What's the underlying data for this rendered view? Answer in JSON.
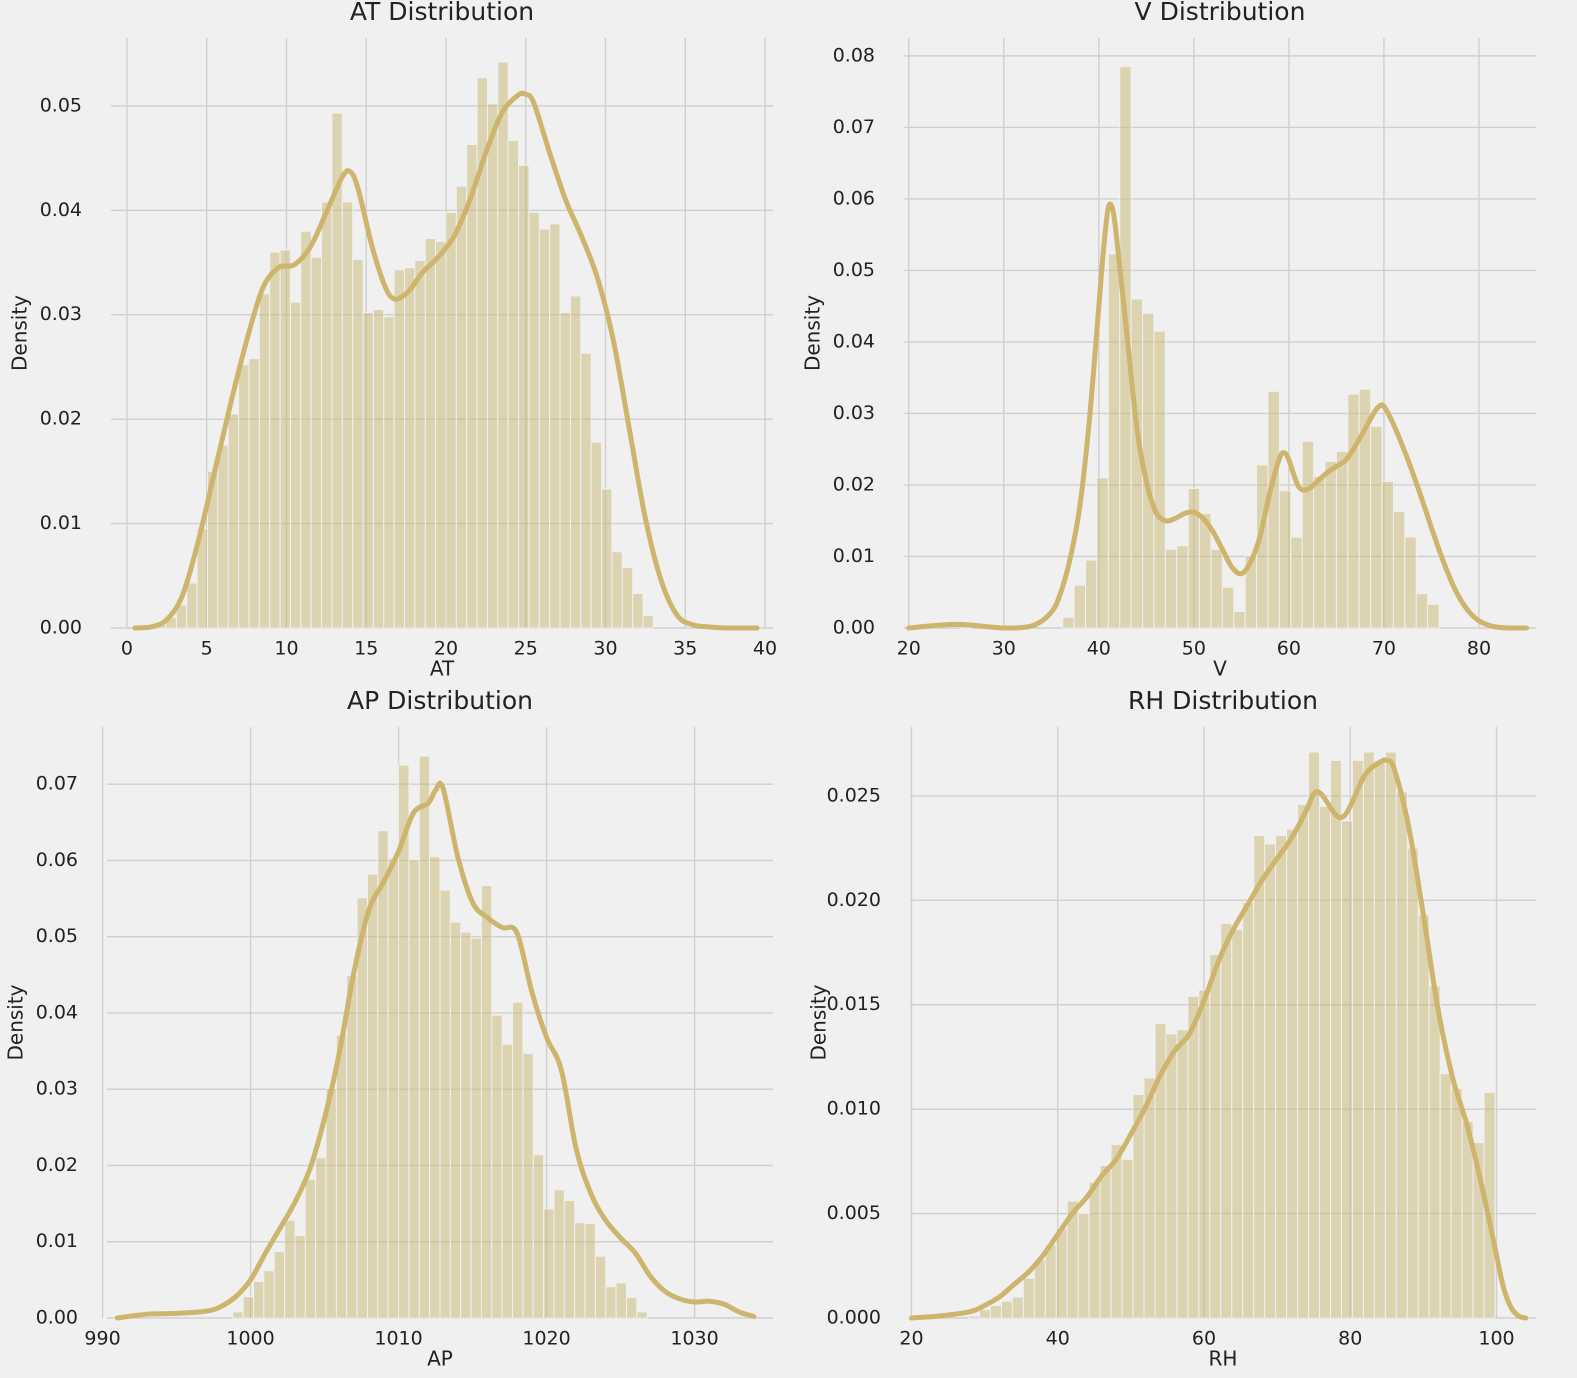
{
  "colors": {
    "background": "#f0f0f0",
    "bar": "#c7b46a",
    "kde": "#cdb56e",
    "grid": "#cfcfcf"
  },
  "chart_data": [
    {
      "type": "bar",
      "title": "AT Distribution",
      "xlabel": "AT",
      "ylabel": "Density",
      "xlim": [
        -1,
        40.5
      ],
      "ylim": [
        0,
        0.0565
      ],
      "xticks": [
        0,
        5,
        10,
        15,
        20,
        25,
        30,
        35,
        40
      ],
      "yticks": [
        0.0,
        0.01,
        0.02,
        0.03,
        0.04,
        0.05
      ],
      "xtick_labels": [
        "0",
        "5",
        "10",
        "15",
        "20",
        "25",
        "30",
        "35",
        "40"
      ],
      "ytick_labels": [
        "0.00",
        "0.01",
        "0.02",
        "0.03",
        "0.04",
        "0.05"
      ],
      "grid": true,
      "bins": {
        "start": 1.8,
        "width": 0.65,
        "heights": [
          0.0003,
          0.001,
          0.0022,
          0.0043,
          0.0095,
          0.015,
          0.0175,
          0.0205,
          0.0252,
          0.0258,
          0.032,
          0.036,
          0.0362,
          0.0312,
          0.038,
          0.0355,
          0.0408,
          0.0493,
          0.0408,
          0.0353,
          0.0302,
          0.0305,
          0.0298,
          0.0343,
          0.0345,
          0.0352,
          0.0373,
          0.037,
          0.0398,
          0.0423,
          0.0463,
          0.0527,
          0.0502,
          0.0542,
          0.0467,
          0.0443,
          0.0398,
          0.0382,
          0.0387,
          0.0302,
          0.0318,
          0.0263,
          0.0178,
          0.0133,
          0.0073,
          0.0058,
          0.0033,
          0.0012
        ]
      },
      "kde": {
        "x": [
          0.5,
          1.5,
          2.5,
          3.5,
          4.5,
          5.5,
          6.5,
          7.5,
          8.5,
          9.5,
          10.5,
          11.5,
          12.5,
          13.5,
          14,
          14.5,
          15.5,
          16.5,
          17.5,
          18.5,
          19.5,
          20.5,
          21.5,
          22.5,
          23.5,
          24.5,
          25,
          25.5,
          26.5,
          27.5,
          28.5,
          29.5,
          30.5,
          31.5,
          32.5,
          33.5,
          34.5,
          35.5,
          36.5,
          37.5,
          38.5,
          39.5
        ],
        "y": [
          0,
          0.0001,
          0.0008,
          0.0032,
          0.0085,
          0.015,
          0.0215,
          0.0275,
          0.0325,
          0.0345,
          0.0348,
          0.0365,
          0.0398,
          0.0432,
          0.0437,
          0.042,
          0.0358,
          0.0318,
          0.032,
          0.034,
          0.0355,
          0.0375,
          0.041,
          0.0455,
          0.0493,
          0.051,
          0.0511,
          0.0503,
          0.0455,
          0.041,
          0.0375,
          0.0335,
          0.0275,
          0.019,
          0.0105,
          0.0045,
          0.0012,
          0.0003,
          0.0001,
          0,
          0,
          0
        ]
      }
    },
    {
      "type": "bar",
      "title": "V Distribution",
      "xlabel": "V",
      "ylabel": "Density",
      "xlim": [
        19.5,
        86
      ],
      "ylim": [
        0,
        0.0825
      ],
      "xticks": [
        20,
        30,
        40,
        50,
        60,
        70,
        80
      ],
      "yticks": [
        0.0,
        0.01,
        0.02,
        0.03,
        0.04,
        0.05,
        0.06,
        0.07,
        0.08
      ],
      "xtick_labels": [
        "20",
        "30",
        "40",
        "50",
        "60",
        "70",
        "80"
      ],
      "ytick_labels": [
        "0.00",
        "0.01",
        "0.02",
        "0.03",
        "0.04",
        "0.05",
        "0.06",
        "0.07",
        "0.08"
      ],
      "grid": true,
      "bins": {
        "start": 25.4,
        "width": 1.2,
        "heights": [
          0.0007,
          0,
          0,
          0,
          0,
          0,
          0,
          0,
          0,
          0.0015,
          0.006,
          0.0095,
          0.021,
          0.0523,
          0.0785,
          0.046,
          0.044,
          0.0415,
          0.011,
          0.0115,
          0.0195,
          0.016,
          0.011,
          0.0057,
          0.0023,
          0.0101,
          0.0228,
          0.0331,
          0.0192,
          0.0127,
          0.0261,
          0.0212,
          0.0233,
          0.0247,
          0.0327,
          0.0334,
          0.0282,
          0.0205,
          0.0163,
          0.0127,
          0.0048,
          0.0033
        ]
      },
      "kde": {
        "x": [
          20,
          25,
          30,
          33,
          35,
          36,
          37,
          38,
          39,
          40,
          40.5,
          41,
          41.5,
          42,
          43,
          44,
          45,
          46,
          47,
          48,
          49,
          50,
          51,
          52,
          53,
          54,
          55,
          56,
          57,
          58,
          59,
          59.5,
          60,
          61,
          62,
          63,
          64,
          65,
          66,
          67,
          68,
          69,
          69.5,
          70,
          71,
          72,
          73,
          74,
          75,
          76,
          77,
          78,
          79,
          80,
          81,
          82,
          83,
          84,
          85
        ],
        "y": [
          0,
          0.0005,
          0,
          0.0003,
          0.0022,
          0.005,
          0.0098,
          0.017,
          0.029,
          0.045,
          0.053,
          0.0588,
          0.0583,
          0.053,
          0.0405,
          0.028,
          0.0205,
          0.0162,
          0.015,
          0.0153,
          0.016,
          0.0162,
          0.0153,
          0.0135,
          0.011,
          0.0085,
          0.0076,
          0.0093,
          0.013,
          0.019,
          0.0237,
          0.0245,
          0.0235,
          0.0198,
          0.0194,
          0.0205,
          0.0217,
          0.0226,
          0.0235,
          0.0255,
          0.0278,
          0.0302,
          0.031,
          0.031,
          0.0285,
          0.0253,
          0.0218,
          0.018,
          0.014,
          0.0102,
          0.0068,
          0.0041,
          0.0022,
          0.001,
          0.0004,
          0.0001,
          0,
          0,
          0
        ]
      }
    },
    {
      "type": "bar",
      "title": "AP Distribution",
      "xlabel": "AP",
      "ylabel": "Density",
      "xlim": [
        990.3,
        1035.3
      ],
      "ylim": [
        0,
        0.0775
      ],
      "xticks": [
        990,
        1000,
        1010,
        1020,
        1030
      ],
      "yticks": [
        0.0,
        0.01,
        0.02,
        0.03,
        0.04,
        0.05,
        0.06,
        0.07
      ],
      "xtick_labels": [
        "990",
        "1000",
        "1010",
        "1020",
        "1030"
      ],
      "ytick_labels": [
        "0.00",
        "0.01",
        "0.02",
        "0.03",
        "0.04",
        "0.05",
        "0.06",
        "0.07"
      ],
      "grid": true,
      "bins": {
        "start": 998.8,
        "width": 0.7,
        "heights": [
          0.0008,
          0.0028,
          0.0048,
          0.0062,
          0.0087,
          0.0128,
          0.0108,
          0.0182,
          0.021,
          0.0301,
          0.0371,
          0.0449,
          0.0551,
          0.0582,
          0.0639,
          0.0602,
          0.0725,
          0.0601,
          0.0737,
          0.0605,
          0.0561,
          0.0519,
          0.0506,
          0.0498,
          0.0567,
          0.0397,
          0.0359,
          0.0414,
          0.0347,
          0.0214,
          0.0143,
          0.0168,
          0.0154,
          0.0125,
          0.0124,
          0.0081,
          0.0041,
          0.0046,
          0.0027,
          0.0008
        ]
      },
      "kde": {
        "x": [
          991,
          993,
          995,
          997,
          998,
          999,
          1000,
          1001,
          1002,
          1003,
          1004,
          1005,
          1006,
          1007,
          1008,
          1009,
          1010,
          1011,
          1012,
          1012.5,
          1013,
          1014,
          1015,
          1016,
          1017,
          1018,
          1019,
          1020,
          1021,
          1022,
          1023,
          1024,
          1025,
          1026,
          1027,
          1028,
          1029,
          1030,
          1031,
          1032,
          1033,
          1034
        ],
        "y": [
          0,
          0.0005,
          0.0006,
          0.0009,
          0.0015,
          0.0028,
          0.005,
          0.0085,
          0.0118,
          0.0152,
          0.0195,
          0.0262,
          0.0348,
          0.0455,
          0.0535,
          0.0572,
          0.0612,
          0.0662,
          0.0675,
          0.0692,
          0.0695,
          0.0605,
          0.0545,
          0.0525,
          0.0512,
          0.0505,
          0.0428,
          0.0368,
          0.0325,
          0.0222,
          0.0163,
          0.0128,
          0.0105,
          0.0085,
          0.0055,
          0.0035,
          0.0025,
          0.0021,
          0.0022,
          0.0018,
          0.0008,
          0.0002
        ]
      }
    },
    {
      "type": "bar",
      "title": "RH Distribution",
      "xlabel": "RH",
      "ylabel": "Density",
      "xlim": [
        19.8,
        105.4
      ],
      "ylim": [
        0,
        0.0283
      ],
      "xticks": [
        20,
        40,
        60,
        80,
        100
      ],
      "yticks": [
        0.0,
        0.005,
        0.01,
        0.015,
        0.02,
        0.025
      ],
      "xtick_labels": [
        "20",
        "40",
        "60",
        "80",
        "100"
      ],
      "ytick_labels": [
        "0.000",
        "0.005",
        "0.010",
        "0.015",
        "0.020",
        "0.025"
      ],
      "grid": true,
      "bins": {
        "start": 27.8,
        "width": 1.5,
        "heights": [
          0.0001,
          0.0004,
          0.0006,
          0.0008,
          0.001,
          0.0019,
          0.0028,
          0.0035,
          0.0043,
          0.0056,
          0.005,
          0.0065,
          0.0073,
          0.0083,
          0.0076,
          0.0107,
          0.0115,
          0.0141,
          0.0136,
          0.0138,
          0.0154,
          0.0157,
          0.0174,
          0.0189,
          0.0186,
          0.0199,
          0.0231,
          0.0227,
          0.0231,
          0.0234,
          0.0246,
          0.0271,
          0.0245,
          0.0267,
          0.0238,
          0.0267,
          0.0271,
          0.0267,
          0.0271,
          0.0252,
          0.0225,
          0.0193,
          0.0159,
          0.0117,
          0.011,
          0.0094,
          0.0084,
          0.0108
        ]
      },
      "kde": {
        "x": [
          20,
          24,
          28,
          30,
          32,
          34,
          36,
          38,
          40,
          42,
          44,
          46,
          48,
          50,
          52,
          54,
          56,
          58,
          60,
          62,
          64,
          66,
          68,
          70,
          72,
          74,
          75,
          76,
          78,
          79,
          80,
          82,
          84,
          85,
          86,
          88,
          90,
          92,
          94,
          96,
          98,
          100,
          101,
          102,
          103,
          104
        ],
        "y": [
          0,
          0.0001,
          0.0003,
          0.0006,
          0.001,
          0.0016,
          0.0022,
          0.003,
          0.004,
          0.005,
          0.0058,
          0.0068,
          0.0076,
          0.0088,
          0.0101,
          0.0116,
          0.0128,
          0.0136,
          0.0152,
          0.0171,
          0.0186,
          0.0198,
          0.021,
          0.022,
          0.023,
          0.0243,
          0.0251,
          0.0251,
          0.0241,
          0.024,
          0.0245,
          0.026,
          0.0266,
          0.0267,
          0.0263,
          0.0235,
          0.0193,
          0.0148,
          0.0115,
          0.0092,
          0.0063,
          0.003,
          0.0014,
          0.0005,
          0.0001,
          0
        ]
      }
    }
  ]
}
